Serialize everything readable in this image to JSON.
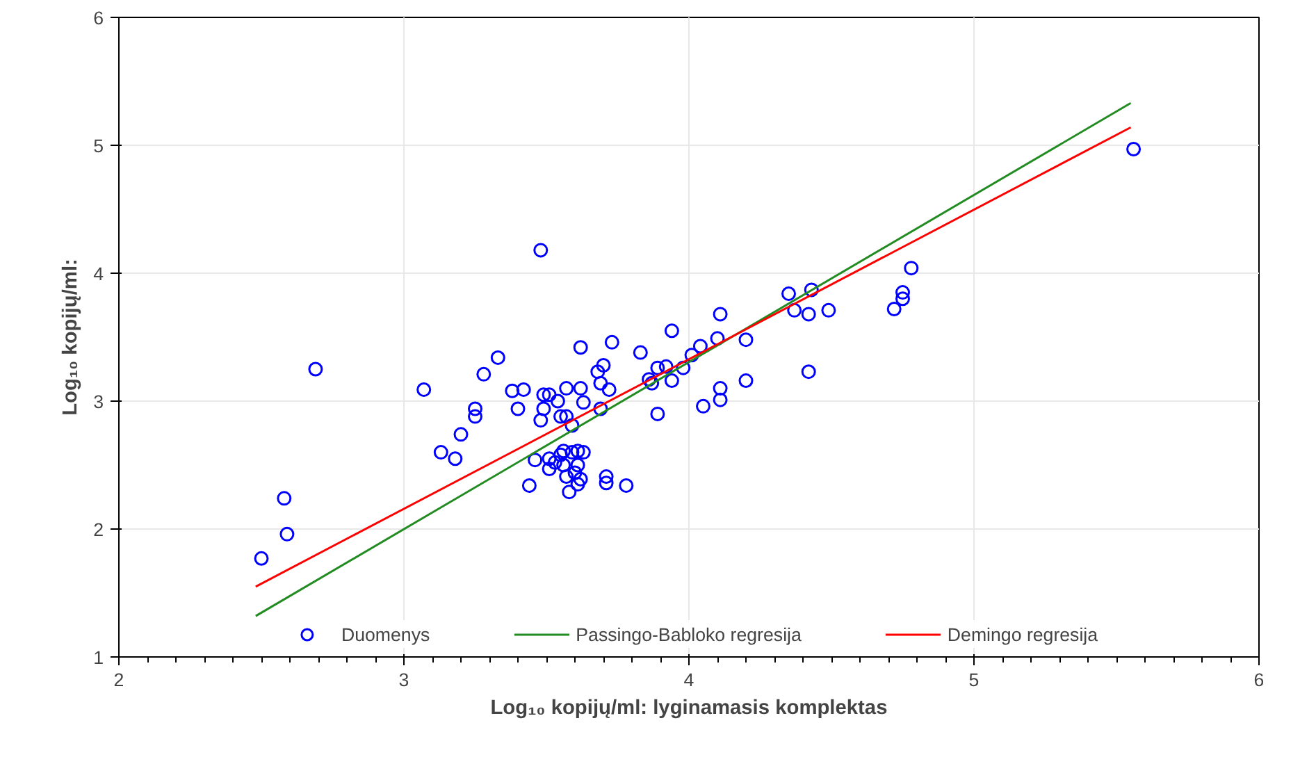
{
  "chart_data": {
    "type": "scatter",
    "xlabel": "Log₁₀ kopijų/ml: lyginamasis komplektas",
    "ylabel": "Log₁₀ kopijų/ml:",
    "xlim": [
      2,
      6
    ],
    "ylim": [
      1,
      6
    ],
    "xticks": [
      2,
      3,
      4,
      5,
      6
    ],
    "yticks": [
      1,
      2,
      3,
      4,
      5,
      6
    ],
    "grid": true,
    "legend": "bottom",
    "series": [
      {
        "name": "Duomenys",
        "marker": "circle",
        "color": "#0000ff",
        "x": [
          2.5,
          2.58,
          2.59,
          2.69,
          3.07,
          3.13,
          3.18,
          3.2,
          3.25,
          3.25,
          3.28,
          3.33,
          3.38,
          3.4,
          3.42,
          3.44,
          3.48,
          3.49,
          3.49,
          3.48,
          3.51,
          3.54,
          3.57,
          3.55,
          3.57,
          3.59,
          3.62,
          3.63,
          3.62,
          3.68,
          3.7,
          3.69,
          3.72,
          3.73,
          3.69,
          3.83,
          3.86,
          3.87,
          3.89,
          3.92,
          3.94,
          3.94,
          3.98,
          4.01,
          4.04,
          3.89,
          4.05,
          4.1,
          4.11,
          4.11,
          4.11,
          4.2,
          4.2,
          4.35,
          4.37,
          4.42,
          4.43,
          4.42,
          4.49,
          4.72,
          4.75,
          4.75,
          4.78,
          5.56,
          3.46,
          3.51,
          3.51,
          3.53,
          3.56,
          3.56,
          3.59,
          3.6,
          3.61,
          3.63,
          3.61,
          3.62,
          3.61,
          3.58,
          3.71,
          3.71,
          3.78,
          3.55,
          3.57
        ],
        "values": [
          1.77,
          2.24,
          1.96,
          3.25,
          3.09,
          2.6,
          2.55,
          2.74,
          2.94,
          2.88,
          3.21,
          3.34,
          3.08,
          2.94,
          3.09,
          2.34,
          4.18,
          3.05,
          2.94,
          2.85,
          3.05,
          3.0,
          3.1,
          2.88,
          2.88,
          2.81,
          3.1,
          2.99,
          3.42,
          3.23,
          3.28,
          3.14,
          3.09,
          3.46,
          2.94,
          3.38,
          3.17,
          3.14,
          3.26,
          3.27,
          3.55,
          3.16,
          3.26,
          3.36,
          3.43,
          2.9,
          2.96,
          3.49,
          3.68,
          3.1,
          3.01,
          3.16,
          3.48,
          3.84,
          3.71,
          3.68,
          3.87,
          3.23,
          3.71,
          3.72,
          3.85,
          3.8,
          4.04,
          4.97,
          2.54,
          2.55,
          2.47,
          2.52,
          2.61,
          2.5,
          2.6,
          2.44,
          2.61,
          2.6,
          2.5,
          2.39,
          2.35,
          2.29,
          2.41,
          2.36,
          2.34,
          2.58,
          2.41
        ]
      },
      {
        "name": "Passingo-Babloko regresija",
        "type": "line",
        "color": "#228b22",
        "line_style": "solid",
        "x": [
          2.48,
          5.55
        ],
        "values": [
          1.32,
          5.33
        ]
      },
      {
        "name": "Demingo regresija",
        "type": "line",
        "color": "#ff0000",
        "line_style": "solid",
        "x": [
          2.48,
          5.55
        ],
        "values": [
          1.55,
          5.14
        ]
      }
    ]
  }
}
